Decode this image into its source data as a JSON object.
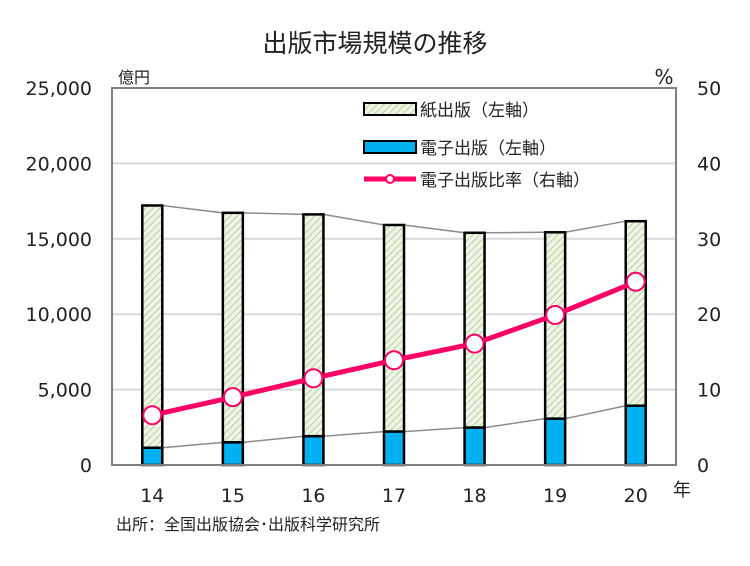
{
  "chart_data": {
    "type": "bar",
    "title": "出版市場規模の推移",
    "categories": [
      "14",
      "15",
      "16",
      "17",
      "18",
      "19",
      "20"
    ],
    "xlabel": "年",
    "ylabel_left": "億円",
    "ylabel_right": "%",
    "ylim_left": [
      0,
      25000
    ],
    "ylim_right": [
      0,
      50
    ],
    "yticks_left": [
      "0",
      "5,000",
      "10,000",
      "15,000",
      "20,000",
      "25,000"
    ],
    "yticks_left_values": [
      0,
      5000,
      10000,
      15000,
      20000,
      25000
    ],
    "yticks_right": [
      "0",
      "10",
      "20",
      "30",
      "40",
      "50"
    ],
    "yticks_right_values": [
      0,
      10,
      20,
      30,
      40,
      50
    ],
    "grid": true,
    "legend_position": "top-right",
    "stacked": true,
    "series": [
      {
        "name": "電子出版（左軸）",
        "type": "bar",
        "axis": "left",
        "color": "#00b0f0",
        "values": [
          1144,
          1502,
          1909,
          2215,
          2479,
          3072,
          3931
        ]
      },
      {
        "name": "紙出版（左軸）",
        "type": "bar",
        "axis": "left",
        "color": "#e2efd9",
        "hatch": true,
        "values": [
          16065,
          15220,
          14709,
          13701,
          12921,
          12360,
          12237
        ]
      },
      {
        "name": "電子出版比率（右軸）",
        "type": "line",
        "axis": "right",
        "color": "#ff0066",
        "values": [
          6.6,
          9.0,
          11.5,
          13.9,
          16.1,
          19.9,
          24.3
        ]
      }
    ],
    "legend_order": [
      1,
      0,
      2
    ],
    "source": "出所：全国出版協会･出版科学研究所"
  }
}
